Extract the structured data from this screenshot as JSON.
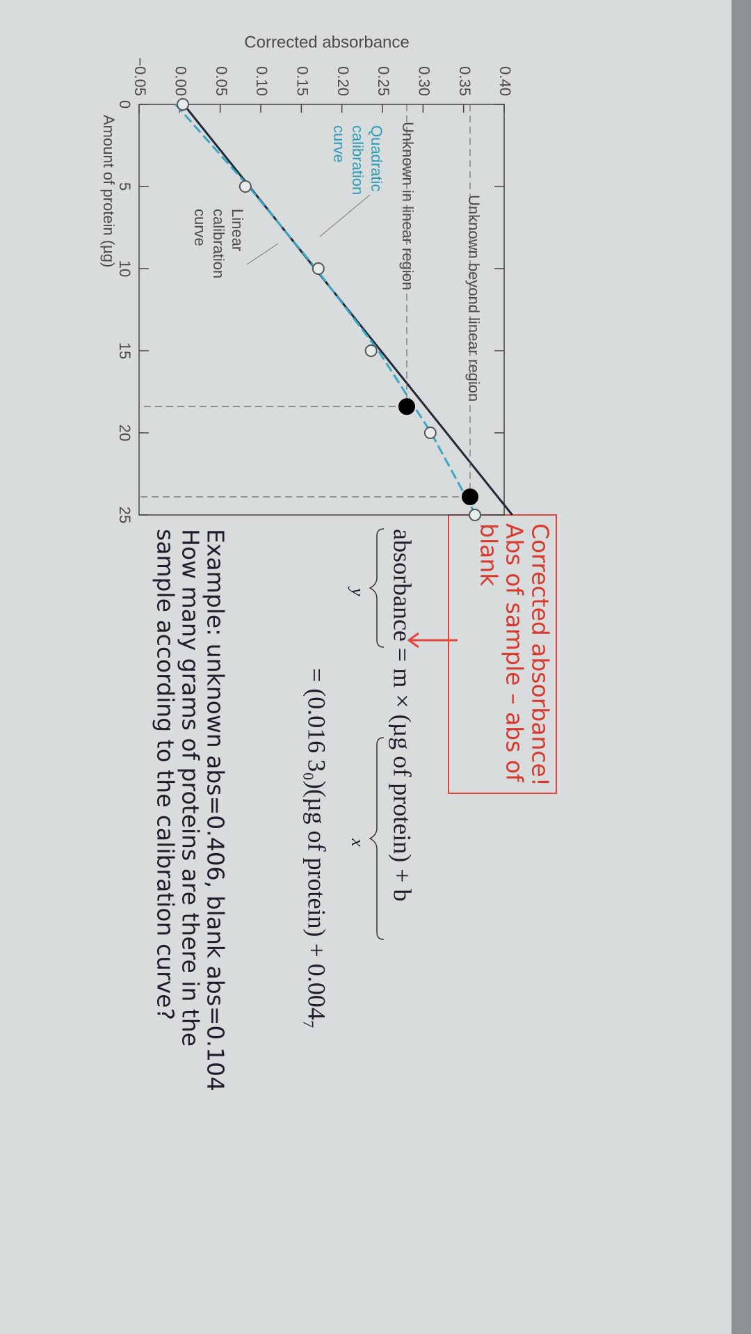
{
  "chart_data": {
    "type": "scatter",
    "ylabel": "Corrected absorbance",
    "xlabel": "Amount of protein (µg)",
    "xlim": [
      0,
      25
    ],
    "xticks": [
      0,
      5,
      10,
      15,
      20,
      25
    ],
    "ylim": [
      -0.05,
      0.4
    ],
    "yticks": [
      {
        "value": -0.05,
        "label": "−0.05"
      },
      {
        "value": 0,
        "label": "0.00"
      },
      {
        "value": 0.05,
        "label": "0.05"
      },
      {
        "value": 0.1,
        "label": "0.10"
      },
      {
        "value": 0.15,
        "label": "0.15"
      },
      {
        "value": 0.2,
        "label": "0.20"
      },
      {
        "value": 0.25,
        "label": "0.25"
      },
      {
        "value": 0.3,
        "label": "0.30"
      },
      {
        "value": 0.35,
        "label": "0.35"
      },
      {
        "value": 0.4,
        "label": "0.40"
      }
    ],
    "series": [
      {
        "color": "#1f2a36",
        "line": "solid",
        "x": [
          0,
          25
        ],
        "values": [
          0.005,
          0.41
        ]
      },
      {
        "color": "#3aa6c4",
        "line": "dashed",
        "x": [
          0,
          5,
          10,
          15,
          20,
          25
        ],
        "values": [
          -0.005,
          0.085,
          0.168,
          0.245,
          0.31,
          0.365
        ]
      },
      {
        "color": "#555555",
        "marker": "open",
        "x": [
          0,
          5,
          10,
          15,
          20,
          25
        ],
        "values": [
          0.004,
          0.081,
          0.171,
          0.236,
          0.309,
          0.364
        ]
      },
      {
        "color": "#000000",
        "marker": "filled",
        "guides": true,
        "x": [
          18.4,
          23.9
        ],
        "values": [
          0.28,
          0.358
        ]
      }
    ],
    "annotations": [
      "Unknown beyond linear region",
      "Unknown in linear region",
      "Quadratic",
      "calibration",
      "curve",
      "Linear",
      "calibration",
      "curve"
    ]
  },
  "document": {
    "note": [
      "Corrected absorbance!",
      "Abs of sample – abs of",
      "blank"
    ],
    "equation1": {
      "text": "absorbance = m × (µg of protein) + b",
      "y": "y",
      "x": "x"
    },
    "equation2": "= (0.016 3₀)(µg of protein) + 0.004₇",
    "example": [
      "Example: unknown abs=0.406, blank abs=0.104",
      "How many grams of proteins are there in the",
      "sample according to the calibration curve?"
    ]
  }
}
